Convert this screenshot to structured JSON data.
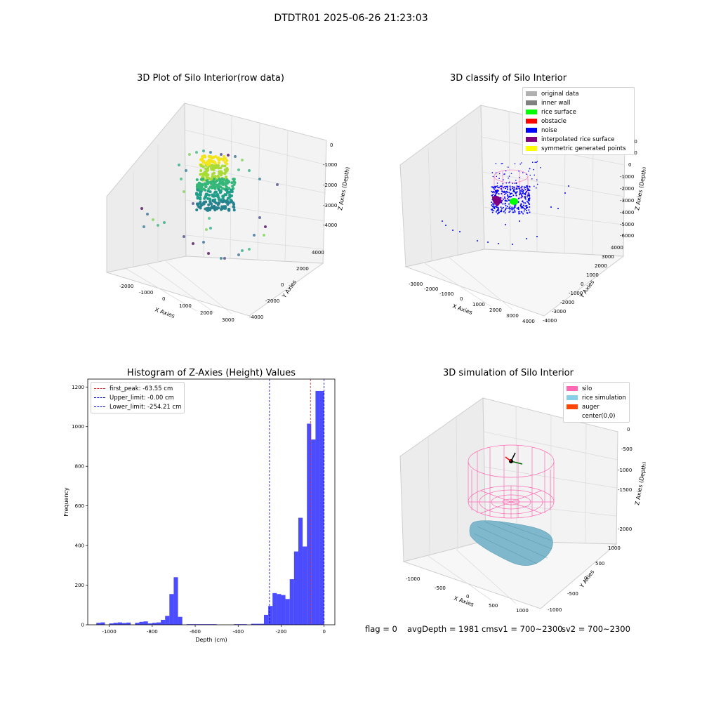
{
  "figure": {
    "suptitle": "DTDTR01 2025-06-26 21:23:03"
  },
  "panels": {
    "raw": {
      "title": "3D Plot of Silo Interior(row data)",
      "xlabel": "X Axies",
      "ylabel": "Y Axies",
      "zlabel": "Z Axies (Depth)",
      "xticks": [
        "-2000",
        "-1000",
        "0",
        "1000",
        "2000",
        "3000"
      ],
      "yticks": [
        "-4000",
        "-2000",
        "0",
        "2000",
        "4000"
      ],
      "zticks": [
        "-4000",
        "-3000",
        "-2000",
        "-1000",
        "0"
      ]
    },
    "classify": {
      "title": "3D classify of Silo Interior",
      "xlabel": "X Axies",
      "ylabel": "Y Axies",
      "zlabel": "Z Axies (Depth)",
      "xticks": [
        "-3000",
        "-2000",
        "-1000",
        "0",
        "1000",
        "2000",
        "3000",
        "4000"
      ],
      "yticks": [
        "-4000",
        "-3000",
        "-2000",
        "-1000",
        "0",
        "1000",
        "2000",
        "3000",
        "4000"
      ],
      "zticks": [
        "-6000",
        "-5000",
        "-4000",
        "-3000",
        "-2000",
        "-1000",
        "0",
        "1000",
        "2000"
      ],
      "legend": [
        {
          "label": "original data",
          "color": "#b0b0b0"
        },
        {
          "label": "inner wall",
          "color": "#808080"
        },
        {
          "label": "rice surface",
          "color": "#00ff00"
        },
        {
          "label": "obstacle",
          "color": "#ff0000"
        },
        {
          "label": "noise",
          "color": "#0000ff"
        },
        {
          "label": "interpolated rice surface",
          "color": "#800080"
        },
        {
          "label": "symmetric generated points",
          "color": "#ffff00"
        }
      ]
    },
    "simulation": {
      "title": "3D simulation of Silo Interior",
      "xlabel": "X Axies",
      "ylabel": "Y Axies",
      "zlabel": "Z Axies (Depth)",
      "xticks": [
        "-1000",
        "-500",
        "0",
        "500",
        "1000"
      ],
      "yticks": [
        "-1000",
        "-500",
        "0",
        "500",
        "1000"
      ],
      "zticks": [
        "-2000",
        "-1500",
        "-1000",
        "-500",
        "0"
      ],
      "legend": [
        {
          "label": "silo",
          "color": "#ff69b4"
        },
        {
          "label": "rice simulation",
          "color": "#87ceeb"
        },
        {
          "label": "auger",
          "color": "#ff4500"
        },
        {
          "label": "center(0,0)",
          "color": "#ffffff"
        }
      ]
    }
  },
  "chart_data": {
    "type": "bar",
    "title": "Histogram of Z-Axies (Height) Values",
    "xlabel": "Depth (cm)",
    "ylabel": "Frequency",
    "xlim": [
      -1100,
      50
    ],
    "ylim": [
      0,
      1240
    ],
    "xticks": [
      -1000,
      -800,
      -600,
      -400,
      -200,
      0
    ],
    "yticks": [
      0,
      200,
      400,
      600,
      800,
      1000,
      1200
    ],
    "bar_color": "#0000ff",
    "bins": [
      {
        "x0": -1060,
        "x1": -1040,
        "count": 10
      },
      {
        "x0": -1040,
        "x1": -1020,
        "count": 12
      },
      {
        "x0": -1000,
        "x1": -980,
        "count": 7
      },
      {
        "x0": -980,
        "x1": -960,
        "count": 10
      },
      {
        "x0": -960,
        "x1": -940,
        "count": 12
      },
      {
        "x0": -940,
        "x1": -920,
        "count": 9
      },
      {
        "x0": -920,
        "x1": -900,
        "count": 11
      },
      {
        "x0": -880,
        "x1": -860,
        "count": 10
      },
      {
        "x0": -860,
        "x1": -840,
        "count": 15
      },
      {
        "x0": -840,
        "x1": -820,
        "count": 17
      },
      {
        "x0": -820,
        "x1": -800,
        "count": 7
      },
      {
        "x0": -800,
        "x1": -780,
        "count": 10
      },
      {
        "x0": -780,
        "x1": -760,
        "count": 12
      },
      {
        "x0": -760,
        "x1": -740,
        "count": 25
      },
      {
        "x0": -740,
        "x1": -720,
        "count": 45
      },
      {
        "x0": -720,
        "x1": -700,
        "count": 155
      },
      {
        "x0": -700,
        "x1": -680,
        "count": 240
      },
      {
        "x0": -680,
        "x1": -660,
        "count": 40
      },
      {
        "x0": -640,
        "x1": -620,
        "count": 3
      },
      {
        "x0": -620,
        "x1": -600,
        "count": 3
      },
      {
        "x0": -600,
        "x1": -580,
        "count": 3
      },
      {
        "x0": -580,
        "x1": -560,
        "count": 3
      },
      {
        "x0": -560,
        "x1": -540,
        "count": 3
      },
      {
        "x0": -540,
        "x1": -520,
        "count": 3
      },
      {
        "x0": -520,
        "x1": -500,
        "count": 3
      },
      {
        "x0": -420,
        "x1": -400,
        "count": 3
      },
      {
        "x0": -400,
        "x1": -380,
        "count": 3
      },
      {
        "x0": -380,
        "x1": -360,
        "count": 3
      },
      {
        "x0": -340,
        "x1": -320,
        "count": 5
      },
      {
        "x0": -320,
        "x1": -300,
        "count": 5
      },
      {
        "x0": -300,
        "x1": -280,
        "count": 5
      },
      {
        "x0": -280,
        "x1": -260,
        "count": 50
      },
      {
        "x0": -260,
        "x1": -240,
        "count": 95
      },
      {
        "x0": -240,
        "x1": -220,
        "count": 160
      },
      {
        "x0": -220,
        "x1": -200,
        "count": 155
      },
      {
        "x0": -200,
        "x1": -180,
        "count": 150
      },
      {
        "x0": -180,
        "x1": -160,
        "count": 130
      },
      {
        "x0": -160,
        "x1": -140,
        "count": 230
      },
      {
        "x0": -140,
        "x1": -120,
        "count": 370
      },
      {
        "x0": -120,
        "x1": -100,
        "count": 540
      },
      {
        "x0": -100,
        "x1": -80,
        "count": 395
      },
      {
        "x0": -80,
        "x1": -60,
        "count": 1015
      },
      {
        "x0": -60,
        "x1": -40,
        "count": 935
      },
      {
        "x0": -40,
        "x1": -20,
        "count": 1180
      },
      {
        "x0": -20,
        "x1": 0,
        "count": 1180
      }
    ],
    "vlines": [
      {
        "label": "first_peak: -63.55 cm",
        "x": -63.55,
        "color": "#d62728"
      },
      {
        "label": "Upper_limit: -0.00 cm",
        "x": 0,
        "color": "#0000cc"
      },
      {
        "label": "Lower_limit: -254.21 cm",
        "x": -254.21,
        "color": "#0000cc"
      }
    ],
    "legend_position": "upper left"
  },
  "footer": {
    "flag": "flag = 0",
    "avg": "avgDepth = 1981 cmsv1 = 700~2300",
    "sv2": "sv2 = 700~2300"
  }
}
